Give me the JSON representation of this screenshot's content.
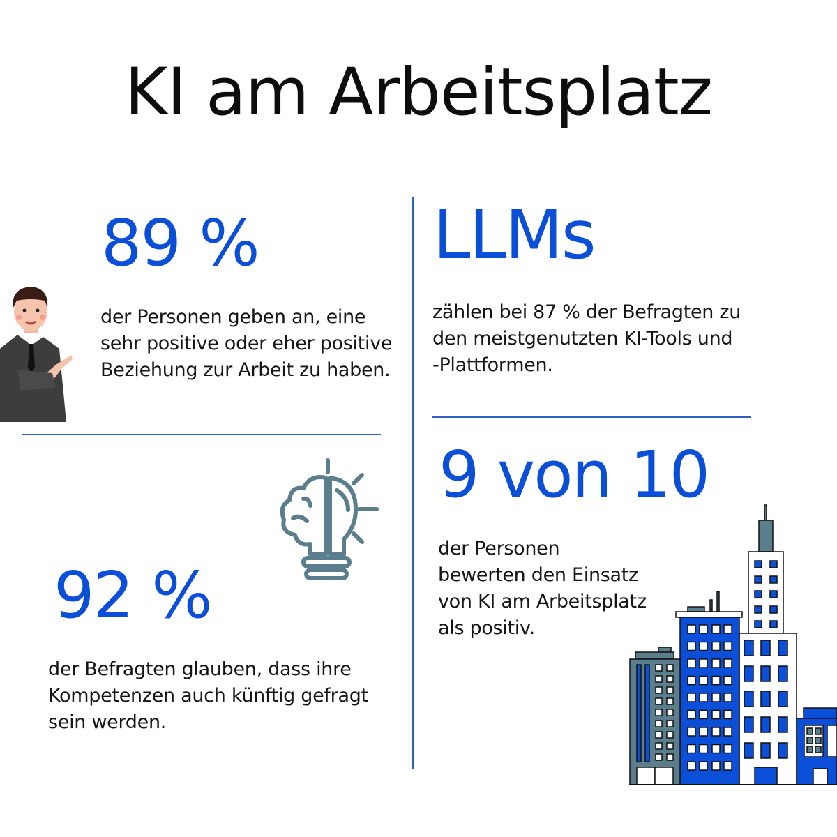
{
  "title": "KI am Arbeitsplatz",
  "colors": {
    "accent": "#0b4fd8",
    "slate": "#5a7e8c",
    "divider": "#2f5fc8"
  },
  "stats": [
    {
      "value": "89 %",
      "lines": [
        "der Personen geben an, eine",
        "sehr positive oder eher positive",
        "Beziehung zur Arbeit zu haben."
      ],
      "icon": "businessman-pointing-icon"
    },
    {
      "value": "LLMs",
      "lines": [
        "zählen bei 87 % der Befragten zu",
        "den meistgenutzten KI-Tools und",
        "-Plattformen."
      ]
    },
    {
      "value": "92 %",
      "lines": [
        "der Befragten glauben, dass ihre",
        "Kompetenzen auch künftig gefragt",
        "sein werden."
      ],
      "icon": "brain-lightbulb-icon"
    },
    {
      "value": "9 von 10",
      "lines": [
        "der Personen",
        "bewerten den Einsatz",
        "von KI am Arbeitsplatz",
        "als positiv."
      ],
      "icon": "city-buildings-icon"
    }
  ]
}
